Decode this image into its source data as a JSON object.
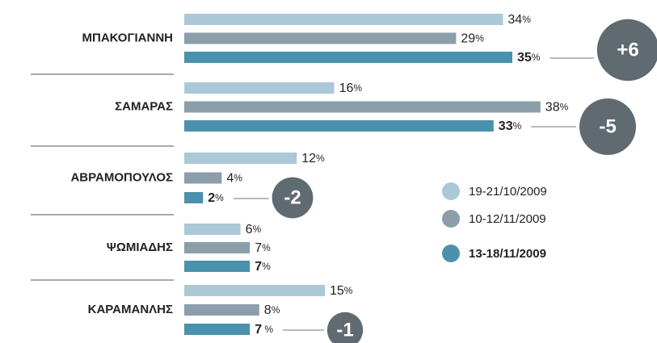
{
  "chart_data": {
    "type": "bar",
    "orientation": "horizontal",
    "categories": [
      "ΜΠΑΚΟΓΙΑΝΝΗ",
      "ΣΑΜΑΡΑΣ",
      "ΑΒΡΑΜΟΠΟΥΛΟΣ",
      "ΨΩΜΙΑΔΗΣ",
      "ΚΑΡΑΜΑΝΛΗΣ"
    ],
    "series": [
      {
        "name": "19-21/10/2009",
        "color": "#abc8d9",
        "values": [
          34,
          16,
          12,
          6,
          15
        ],
        "value_labels": [
          "34%",
          "16%",
          "12%",
          "6%",
          "15%"
        ]
      },
      {
        "name": "10-12/11/2009",
        "color": "#8b9ea9",
        "values": [
          29,
          38,
          4,
          7,
          8
        ],
        "value_labels": [
          "29%",
          "38%",
          "4%",
          "7%",
          "8%"
        ]
      },
      {
        "name": "13-18/11/2009",
        "color": "#4b91ad",
        "values": [
          35,
          33,
          2,
          7,
          7
        ],
        "value_labels": [
          "35%",
          "33%",
          "2%",
          "7%",
          "7 %"
        ]
      }
    ],
    "changes": {
      "values": [
        6,
        -5,
        -2,
        null,
        -1
      ],
      "value_labels": [
        "+6",
        "-5",
        "-2",
        null,
        "-1"
      ],
      "color": "#5f6a71"
    }
  }
}
